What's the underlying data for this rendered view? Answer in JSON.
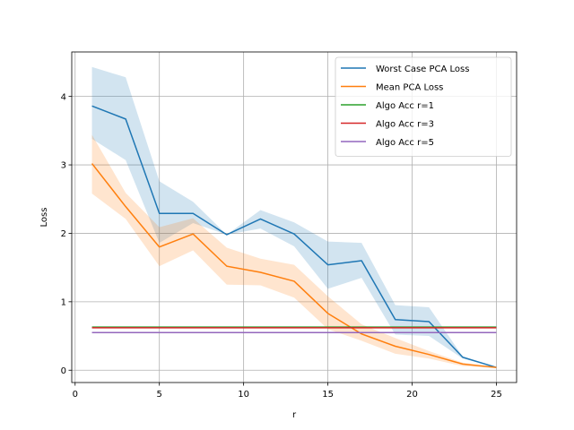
{
  "chart_data": {
    "type": "line",
    "title": "",
    "xlabel": "r",
    "ylabel": "Loss",
    "xlim": [
      -0.2,
      26.2
    ],
    "ylim": [
      -0.18,
      4.65
    ],
    "xticks": [
      0,
      5,
      10,
      15,
      20,
      25
    ],
    "yticks": [
      0,
      1,
      2,
      3,
      4
    ],
    "grid": true,
    "legend_position": "top-right",
    "series": [
      {
        "name": "Worst Case PCA Loss",
        "kind": "line_band",
        "color": "#1f77b4",
        "band_color": "#1f77b4",
        "band_opacity": 0.2,
        "x": [
          1,
          3,
          5,
          7,
          9,
          11,
          13,
          15,
          17,
          19,
          21,
          23,
          25
        ],
        "y": [
          3.86,
          3.67,
          2.29,
          2.29,
          1.98,
          2.21,
          1.99,
          1.54,
          1.6,
          0.74,
          0.71,
          0.19,
          0.04
        ],
        "lower": [
          3.38,
          3.07,
          1.86,
          2.15,
          1.98,
          2.07,
          1.81,
          1.19,
          1.35,
          0.52,
          0.5,
          0.17,
          0.04
        ],
        "upper": [
          4.43,
          4.28,
          2.76,
          2.46,
          1.98,
          2.34,
          2.16,
          1.88,
          1.86,
          0.95,
          0.92,
          0.2,
          0.04
        ]
      },
      {
        "name": "Mean PCA Loss",
        "kind": "line_band",
        "color": "#ff7f0e",
        "band_color": "#ff7f0e",
        "band_opacity": 0.2,
        "x": [
          1,
          3,
          5,
          7,
          9,
          11,
          13,
          15,
          17,
          19,
          21,
          23,
          25
        ],
        "y": [
          3.02,
          2.39,
          1.8,
          1.99,
          1.52,
          1.43,
          1.3,
          0.83,
          0.53,
          0.35,
          0.23,
          0.09,
          0.04
        ],
        "lower": [
          2.58,
          2.21,
          1.52,
          1.75,
          1.25,
          1.24,
          1.06,
          0.6,
          0.43,
          0.24,
          0.17,
          0.06,
          0.03
        ],
        "upper": [
          3.44,
          2.59,
          2.09,
          2.22,
          1.79,
          1.63,
          1.54,
          1.08,
          0.67,
          0.47,
          0.28,
          0.11,
          0.04
        ]
      },
      {
        "name": "Algo Acc r=1",
        "kind": "hline",
        "color": "#2ca02c",
        "x": [
          1,
          25
        ],
        "y": [
          0.63,
          0.63
        ]
      },
      {
        "name": "Algo Acc r=3",
        "kind": "hline",
        "color": "#d62728",
        "x": [
          1,
          25
        ],
        "y": [
          0.62,
          0.62
        ]
      },
      {
        "name": "Algo Acc r=5",
        "kind": "hline",
        "color": "#9467bd",
        "x": [
          1,
          25
        ],
        "y": [
          0.55,
          0.55
        ]
      }
    ]
  }
}
